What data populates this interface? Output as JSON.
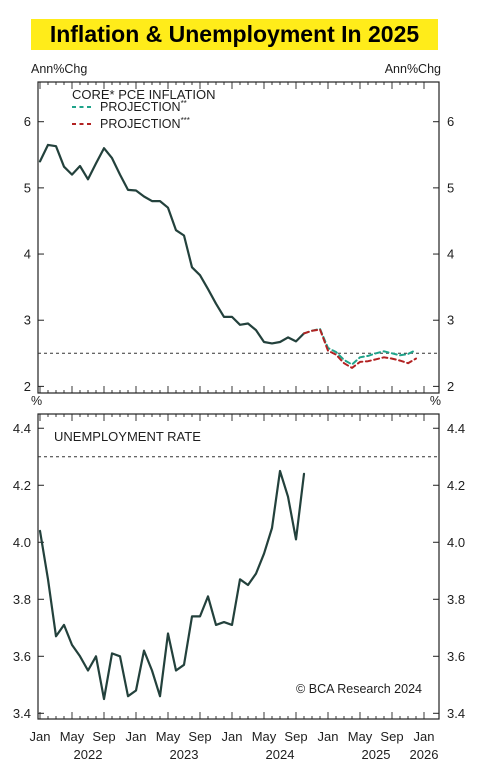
{
  "header": {
    "title": "Inflation & Unemployment In 2025"
  },
  "colors": {
    "main_line": "#23413c",
    "projection_green": "#1fa38a",
    "projection_red": "#b22222",
    "watermark": "#2a9a7a",
    "title_bg": "#ffec1a"
  },
  "chart_data": [
    {
      "type": "line",
      "title": "CORE* PCE INFLATION",
      "ylabel_left": "Ann%Chg",
      "ylabel_right": "Ann%Chg",
      "ylim": [
        1.9,
        6.6
      ],
      "yticks": [
        "2",
        "3",
        "4",
        "5",
        "6"
      ],
      "reference_line": 2.5,
      "legend": [
        "PROJECTION**",
        "PROJECTION***"
      ],
      "legend_position": "top-left",
      "series": [
        {
          "name": "CORE* PCE INFLATION",
          "x": [
            "2022-01",
            "2022-02",
            "2022-03",
            "2022-04",
            "2022-05",
            "2022-06",
            "2022-07",
            "2022-08",
            "2022-09",
            "2022-10",
            "2022-11",
            "2022-12",
            "2023-01",
            "2023-02",
            "2023-03",
            "2023-04",
            "2023-05",
            "2023-06",
            "2023-07",
            "2023-08",
            "2023-09",
            "2023-10",
            "2023-11",
            "2023-12",
            "2024-01",
            "2024-02",
            "2024-03",
            "2024-04",
            "2024-05",
            "2024-06",
            "2024-07",
            "2024-08",
            "2024-09",
            "2024-10"
          ],
          "values": [
            5.4,
            5.65,
            5.63,
            5.32,
            5.2,
            5.33,
            5.13,
            5.37,
            5.6,
            5.45,
            5.2,
            4.97,
            4.96,
            4.87,
            4.8,
            4.8,
            4.7,
            4.36,
            4.28,
            3.8,
            3.68,
            3.47,
            3.25,
            3.05,
            3.05,
            2.93,
            2.95,
            2.85,
            2.67,
            2.65,
            2.67,
            2.74,
            2.68,
            2.8
          ]
        },
        {
          "name": "PROJECTION**",
          "x": [
            "2024-10",
            "2024-11",
            "2024-12",
            "2025-01",
            "2025-02",
            "2025-03",
            "2025-04",
            "2025-05",
            "2025-06",
            "2025-07",
            "2025-08",
            "2025-09",
            "2025-10",
            "2025-11",
            "2025-12"
          ],
          "values": [
            2.8,
            2.84,
            2.87,
            2.58,
            2.52,
            2.4,
            2.33,
            2.44,
            2.46,
            2.5,
            2.53,
            2.5,
            2.47,
            2.49,
            2.55
          ]
        },
        {
          "name": "PROJECTION***",
          "x": [
            "2024-10",
            "2024-11",
            "2024-12",
            "2025-01",
            "2025-02",
            "2025-03",
            "2025-04",
            "2025-05",
            "2025-06",
            "2025-07",
            "2025-08",
            "2025-09",
            "2025-10",
            "2025-11",
            "2025-12"
          ],
          "values": [
            2.8,
            2.84,
            2.86,
            2.54,
            2.48,
            2.35,
            2.28,
            2.37,
            2.38,
            2.41,
            2.44,
            2.42,
            2.39,
            2.35,
            2.42
          ]
        }
      ]
    },
    {
      "type": "line",
      "title": "UNEMPLOYMENT RATE",
      "ylabel_left": "%",
      "ylabel_right": "%",
      "ylim": [
        3.38,
        4.45
      ],
      "yticks": [
        "3.4",
        "3.6",
        "3.8",
        "4.0",
        "4.2",
        "4.4"
      ],
      "reference_line": 4.3,
      "series": [
        {
          "name": "UNEMPLOYMENT RATE",
          "x": [
            "2022-01",
            "2022-02",
            "2022-03",
            "2022-04",
            "2022-05",
            "2022-06",
            "2022-07",
            "2022-08",
            "2022-09",
            "2022-10",
            "2022-11",
            "2022-12",
            "2023-01",
            "2023-02",
            "2023-03",
            "2023-04",
            "2023-05",
            "2023-06",
            "2023-07",
            "2023-08",
            "2023-09",
            "2023-10",
            "2023-11",
            "2023-12",
            "2024-01",
            "2024-02",
            "2024-03",
            "2024-04",
            "2024-05",
            "2024-06",
            "2024-07",
            "2024-08",
            "2024-09",
            "2024-10"
          ],
          "values": [
            4.04,
            3.87,
            3.67,
            3.71,
            3.64,
            3.6,
            3.55,
            3.6,
            3.45,
            3.61,
            3.6,
            3.46,
            3.48,
            3.62,
            3.55,
            3.46,
            3.68,
            3.55,
            3.57,
            3.74,
            3.74,
            3.81,
            3.71,
            3.72,
            3.71,
            3.87,
            3.85,
            3.89,
            3.96,
            4.05,
            4.25,
            4.16,
            4.01,
            4.24
          ]
        }
      ]
    }
  ],
  "x_axis": {
    "month_labels": [
      "Jan",
      "May",
      "Sep",
      "Jan",
      "May",
      "Sep",
      "Jan",
      "May",
      "Sep",
      "Jan",
      "May",
      "Sep",
      "Jan"
    ],
    "year_labels": [
      "2022",
      "2023",
      "2024",
      "2025",
      "2026"
    ]
  },
  "watermark": "© BCA Research 2024"
}
